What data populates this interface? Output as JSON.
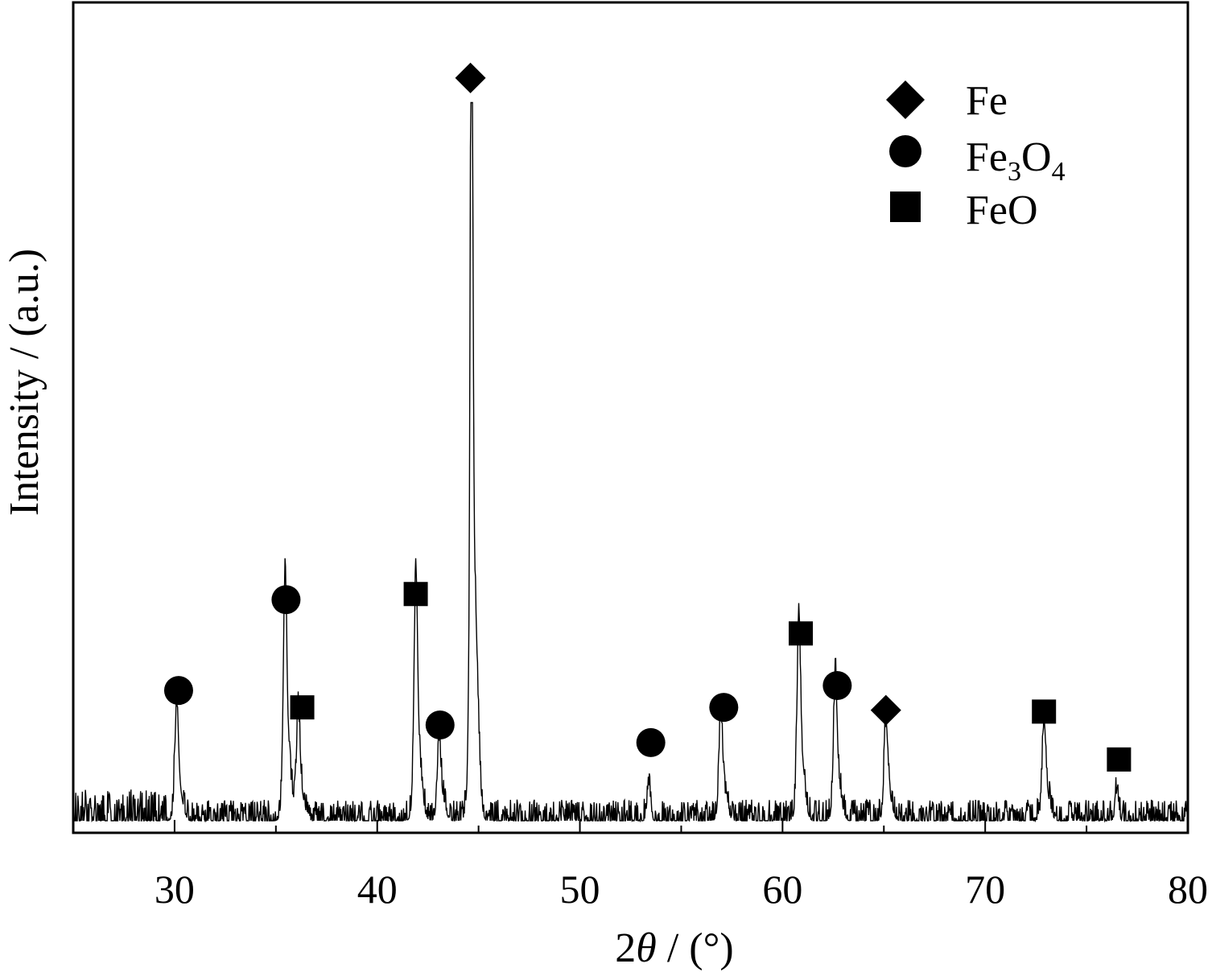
{
  "chart_data": {
    "type": "line",
    "xlabel": {
      "prefix": "2",
      "symbol": "θ",
      "suffix": " / (°)"
    },
    "ylabel": "Intensity / (a.u.)",
    "xlim": [
      25,
      80
    ],
    "ylim": [
      0,
      1
    ],
    "xticks": [
      30,
      40,
      50,
      60,
      70,
      80
    ],
    "yticks_shown": false,
    "grid": false,
    "legend": {
      "placement": "top-right",
      "entries": [
        {
          "marker": "diamond",
          "label": "Fe",
          "phase": "Fe"
        },
        {
          "marker": "circle",
          "label_parts": [
            "Fe",
            "3",
            "O",
            "4"
          ],
          "phase": "Fe3O4"
        },
        {
          "marker": "square",
          "label": "FeO",
          "phase": "FeO"
        }
      ]
    },
    "series": [
      {
        "baseline": 0.0,
        "noise_level": 0.03,
        "noise_level_low_angle": 0.045,
        "peaks": [
          {
            "x": 30.1,
            "height": 0.13,
            "phase": "Fe3O4"
          },
          {
            "x": 35.45,
            "height": 0.27,
            "phase": "Fe3O4"
          },
          {
            "x": 36.1,
            "height": 0.12,
            "phase": "FeO"
          },
          {
            "x": 41.9,
            "height": 0.27,
            "phase": "FeO"
          },
          {
            "x": 43.05,
            "height": 0.09,
            "phase": "Fe3O4"
          },
          {
            "x": 44.65,
            "height": 1.0,
            "phase": "Fe"
          },
          {
            "x": 53.4,
            "height": 0.05,
            "phase": "Fe3O4"
          },
          {
            "x": 56.95,
            "height": 0.12,
            "phase": "Fe3O4"
          },
          {
            "x": 60.8,
            "height": 0.22,
            "phase": "FeO"
          },
          {
            "x": 62.6,
            "height": 0.16,
            "phase": "Fe3O4"
          },
          {
            "x": 65.1,
            "height": 0.11,
            "phase": "Fe"
          },
          {
            "x": 72.9,
            "height": 0.11,
            "phase": "FeO"
          },
          {
            "x": 76.5,
            "height": 0.04,
            "phase": "FeO"
          }
        ]
      }
    ],
    "peak_markers": [
      {
        "x": 30.2,
        "y": 0.185,
        "marker": "circle"
      },
      {
        "x": 35.5,
        "y": 0.314,
        "marker": "circle"
      },
      {
        "x": 36.3,
        "y": 0.161,
        "marker": "square"
      },
      {
        "x": 41.9,
        "y": 0.322,
        "marker": "square"
      },
      {
        "x": 43.1,
        "y": 0.136,
        "marker": "circle"
      },
      {
        "x": 44.6,
        "y": 1.055,
        "marker": "diamond"
      },
      {
        "x": 53.5,
        "y": 0.111,
        "marker": "circle"
      },
      {
        "x": 57.1,
        "y": 0.161,
        "marker": "circle"
      },
      {
        "x": 60.9,
        "y": 0.266,
        "marker": "square"
      },
      {
        "x": 62.7,
        "y": 0.192,
        "marker": "circle"
      },
      {
        "x": 65.1,
        "y": 0.157,
        "marker": "diamond"
      },
      {
        "x": 72.9,
        "y": 0.155,
        "marker": "square"
      },
      {
        "x": 76.6,
        "y": 0.087,
        "marker": "square"
      }
    ]
  },
  "colors": {
    "line": "#000000",
    "marker": "#000000",
    "background": "#ffffff"
  }
}
